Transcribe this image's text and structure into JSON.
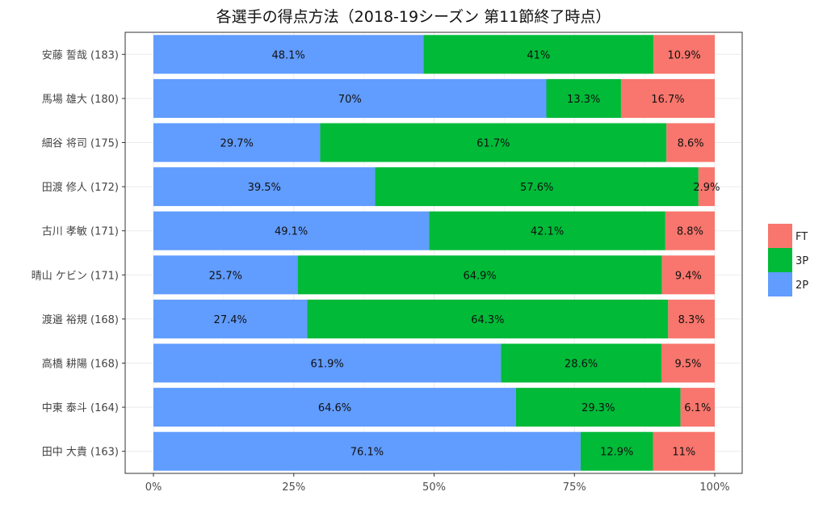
{
  "chart_data": {
    "type": "bar",
    "orientation": "horizontal",
    "stacked": true,
    "normalized": true,
    "title": "各選手の得点方法（2018-19シーズン 第11節終了時点）",
    "xlabel": "",
    "ylabel": "",
    "xlim": [
      0,
      100
    ],
    "x_ticks": [
      "0%",
      "25%",
      "50%",
      "75%",
      "100%"
    ],
    "grid": true,
    "legend_position": "right",
    "categories": [
      "安藤 誓哉 (183)",
      "馬場 雄大 (180)",
      "細谷 将司 (175)",
      "田渡 修人 (172)",
      "古川 孝敏 (171)",
      "晴山 ケビン (171)",
      "渡邉 裕規 (168)",
      "高橋 耕陽 (168)",
      "中東 泰斗 (164)",
      "田中 大貴 (163)"
    ],
    "series": [
      {
        "name": "2P",
        "color": "#619CFF",
        "values": [
          48.1,
          70,
          29.7,
          39.5,
          49.1,
          25.7,
          27.4,
          61.9,
          64.6,
          76.1
        ],
        "labels": [
          "48.1%",
          "70%",
          "29.7%",
          "39.5%",
          "49.1%",
          "25.7%",
          "27.4%",
          "61.9%",
          "64.6%",
          "76.1%"
        ]
      },
      {
        "name": "3P",
        "color": "#00BA38",
        "values": [
          41,
          13.3,
          61.7,
          57.6,
          42.1,
          64.9,
          64.3,
          28.6,
          29.3,
          12.9
        ],
        "labels": [
          "41%",
          "13.3%",
          "61.7%",
          "57.6%",
          "42.1%",
          "64.9%",
          "64.3%",
          "28.6%",
          "29.3%",
          "12.9%"
        ]
      },
      {
        "name": "FT",
        "color": "#F8766D",
        "values": [
          10.9,
          16.7,
          8.6,
          2.9,
          8.8,
          9.4,
          8.3,
          9.5,
          6.1,
          11
        ],
        "labels": [
          "10.9%",
          "16.7%",
          "8.6%",
          "2.9%",
          "8.8%",
          "9.4%",
          "8.3%",
          "9.5%",
          "6.1%",
          "11%"
        ]
      }
    ],
    "legend_order": [
      "FT",
      "3P",
      "2P"
    ]
  }
}
